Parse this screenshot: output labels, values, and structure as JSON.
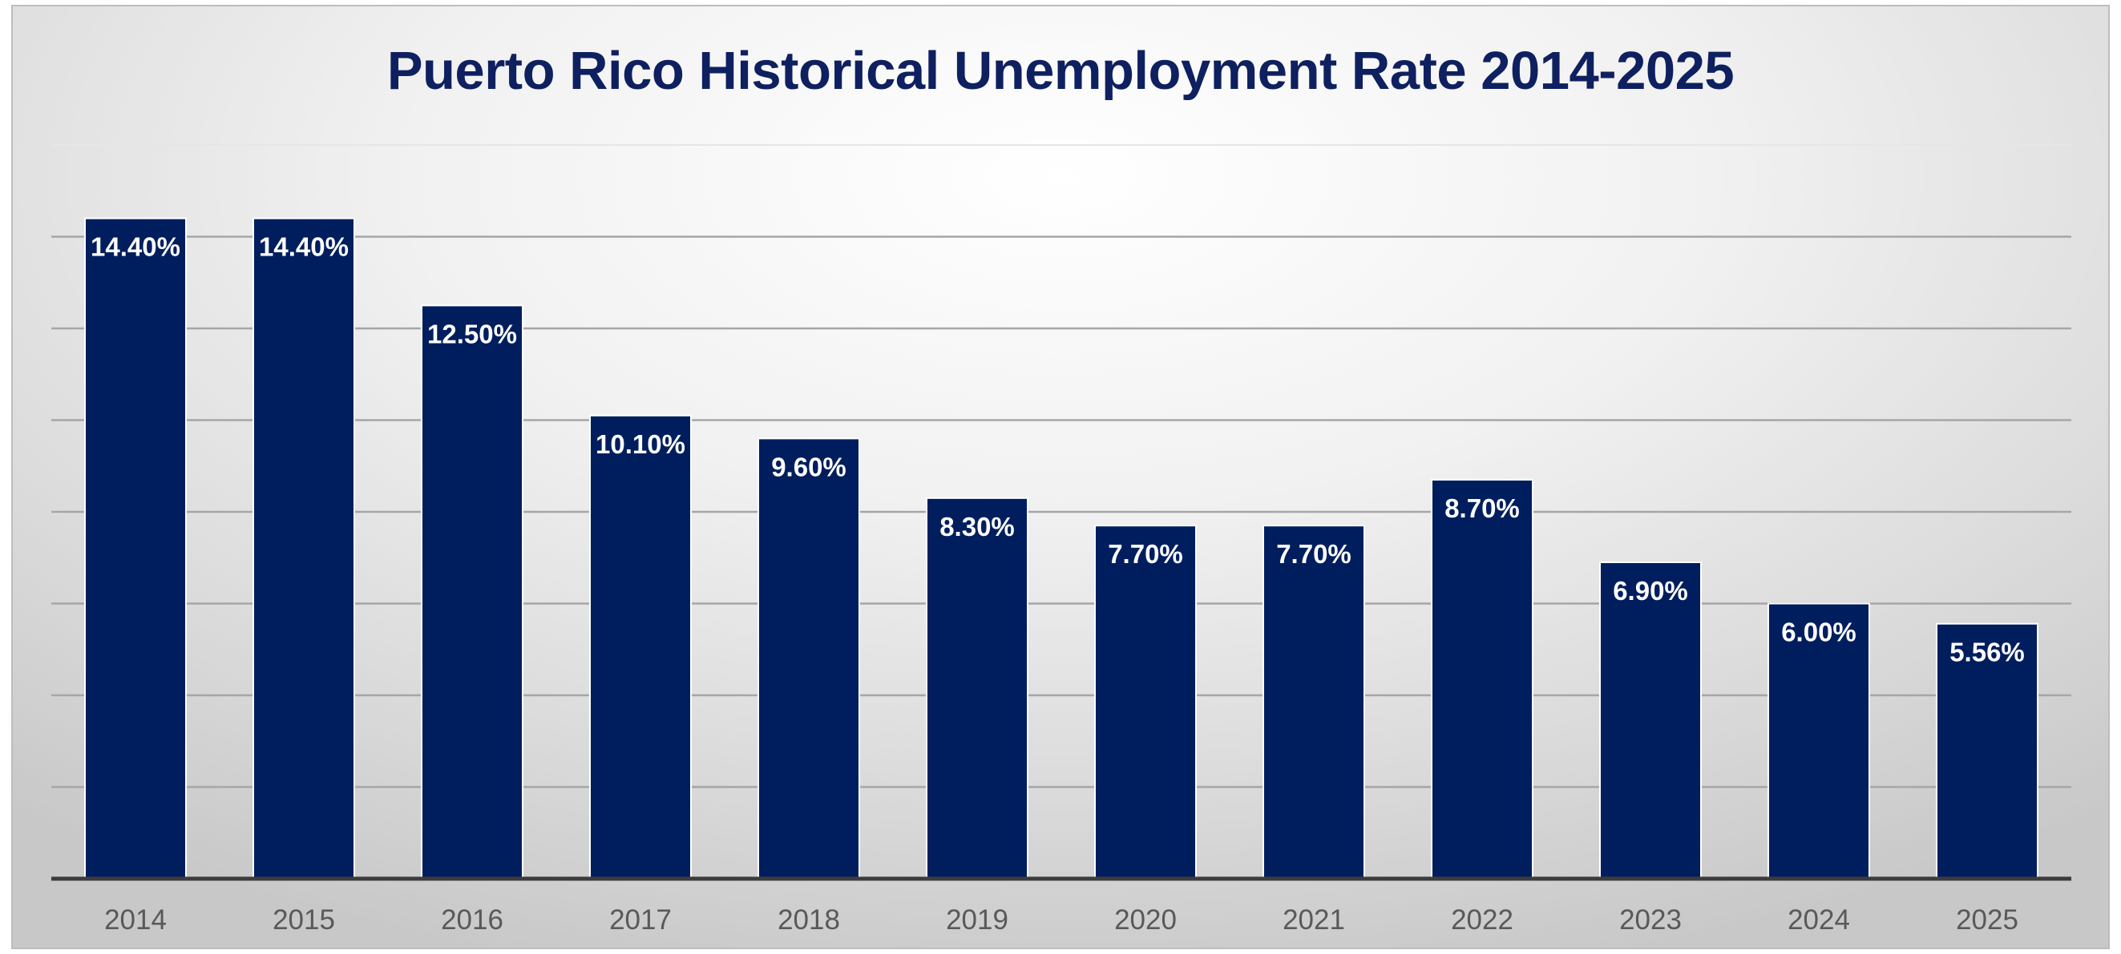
{
  "chart_data": {
    "type": "bar",
    "title": "Puerto Rico Historical Unemployment Rate 2014-2025",
    "xlabel": "",
    "ylabel": "",
    "categories": [
      "2014",
      "2015",
      "2016",
      "2017",
      "2018",
      "2019",
      "2020",
      "2021",
      "2022",
      "2023",
      "2024",
      "2025"
    ],
    "values": [
      14.4,
      14.4,
      12.5,
      10.1,
      9.6,
      8.3,
      7.7,
      7.7,
      8.7,
      6.9,
      6.0,
      5.56
    ],
    "data_labels": [
      "14.40%",
      "14.40%",
      "12.50%",
      "10.10%",
      "9.60%",
      "8.30%",
      "7.70%",
      "7.70%",
      "8.70%",
      "6.90%",
      "6.00%",
      "5.56%"
    ],
    "ylim": [
      0,
      16
    ],
    "y_axis_visible": false,
    "grid": true,
    "legend": "none",
    "bar_color": "#001E5E",
    "title_color": "#0F2060"
  }
}
